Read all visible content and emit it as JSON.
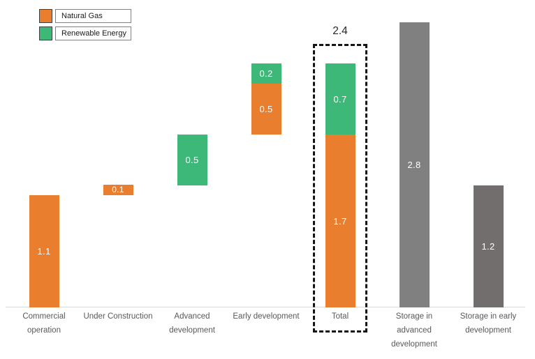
{
  "legend": [
    {
      "label": "Natural Gas",
      "color": "#E87E2E"
    },
    {
      "label": "Renewable Energy",
      "color": "#3DB878"
    }
  ],
  "chart_data": {
    "type": "bar",
    "subtype": "stacked-waterfall",
    "title": "",
    "xlabel": "",
    "ylabel": "",
    "ylim": [
      0,
      3.0
    ],
    "grid": false,
    "legend_position": "top-left",
    "axis_line_color": "#D9D9D9",
    "value_label_color": "#FFFFFF",
    "category_label_color": "#595959",
    "categories": [
      "Commercial operation",
      "Under Construction",
      "Advanced development",
      "Early development",
      "Total",
      "Storage in advanced development",
      "Storage in early development"
    ],
    "series_colors": {
      "Natural Gas": "#E87E2E",
      "Renewable Energy": "#3DB878",
      "Storage (advanced)": "#808080",
      "Storage (early)": "#736E6E"
    },
    "bars": [
      {
        "category": "Commercial operation",
        "base": 0,
        "segments": [
          {
            "series": "Natural Gas",
            "value": 1.1,
            "label": "1.1"
          }
        ]
      },
      {
        "category": "Under Construction",
        "base": 1.1,
        "segments": [
          {
            "series": "Natural Gas",
            "value": 0.1,
            "label": "0.1"
          }
        ]
      },
      {
        "category": "Advanced development",
        "base": 1.2,
        "segments": [
          {
            "series": "Renewable Energy",
            "value": 0.5,
            "label": "0.5"
          }
        ]
      },
      {
        "category": "Early development",
        "base": 1.7,
        "segments": [
          {
            "series": "Natural Gas",
            "value": 0.5,
            "label": "0.5"
          },
          {
            "series": "Renewable Energy",
            "value": 0.2,
            "label": "0.2"
          }
        ]
      },
      {
        "category": "Total",
        "base": 0,
        "highlighted": true,
        "total_label": "2.4",
        "total_value": 2.4,
        "segments": [
          {
            "series": "Natural Gas",
            "value": 1.7,
            "label": "1.7"
          },
          {
            "series": "Renewable Energy",
            "value": 0.7,
            "label": "0.7"
          }
        ]
      },
      {
        "category": "Storage in advanced development",
        "base": 0,
        "segments": [
          {
            "series": "Storage (advanced)",
            "value": 2.8,
            "label": "2.8"
          }
        ]
      },
      {
        "category": "Storage in early development",
        "base": 0,
        "segments": [
          {
            "series": "Storage (early)",
            "value": 1.2,
            "label": "1.2"
          }
        ]
      }
    ],
    "annotations": [
      {
        "text": "2.4",
        "target": "Total",
        "position": "above",
        "style": "dashed-box-highlight"
      }
    ]
  }
}
